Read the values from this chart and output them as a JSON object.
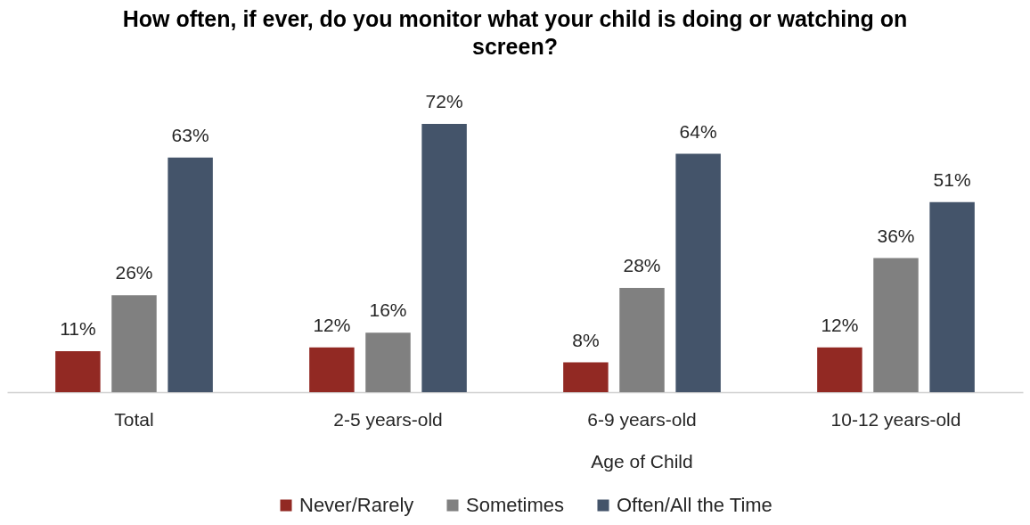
{
  "chart_data": {
    "type": "bar",
    "title": "How often, if ever, do you monitor what your child is doing or watching on screen?",
    "categories": [
      "Total",
      "2-5 years-old",
      "6-9 years-old",
      "10-12 years-old"
    ],
    "series": [
      {
        "name": "Never/Rarely",
        "color": "#922923",
        "values": [
          11,
          12,
          8,
          12
        ],
        "value_labels": [
          "11%",
          "12%",
          "8%",
          "12%"
        ]
      },
      {
        "name": "Sometimes",
        "color": "#808080",
        "values": [
          26,
          16,
          28,
          36
        ],
        "value_labels": [
          "26%",
          "16%",
          "28%",
          "36%"
        ]
      },
      {
        "name": "Often/All the Time",
        "color": "#44546a",
        "values": [
          63,
          72,
          64,
          51
        ],
        "value_labels": [
          "63%",
          "72%",
          "64%",
          "51%"
        ]
      }
    ],
    "annotations": [
      "Age of Child"
    ],
    "legend": "bottom"
  }
}
